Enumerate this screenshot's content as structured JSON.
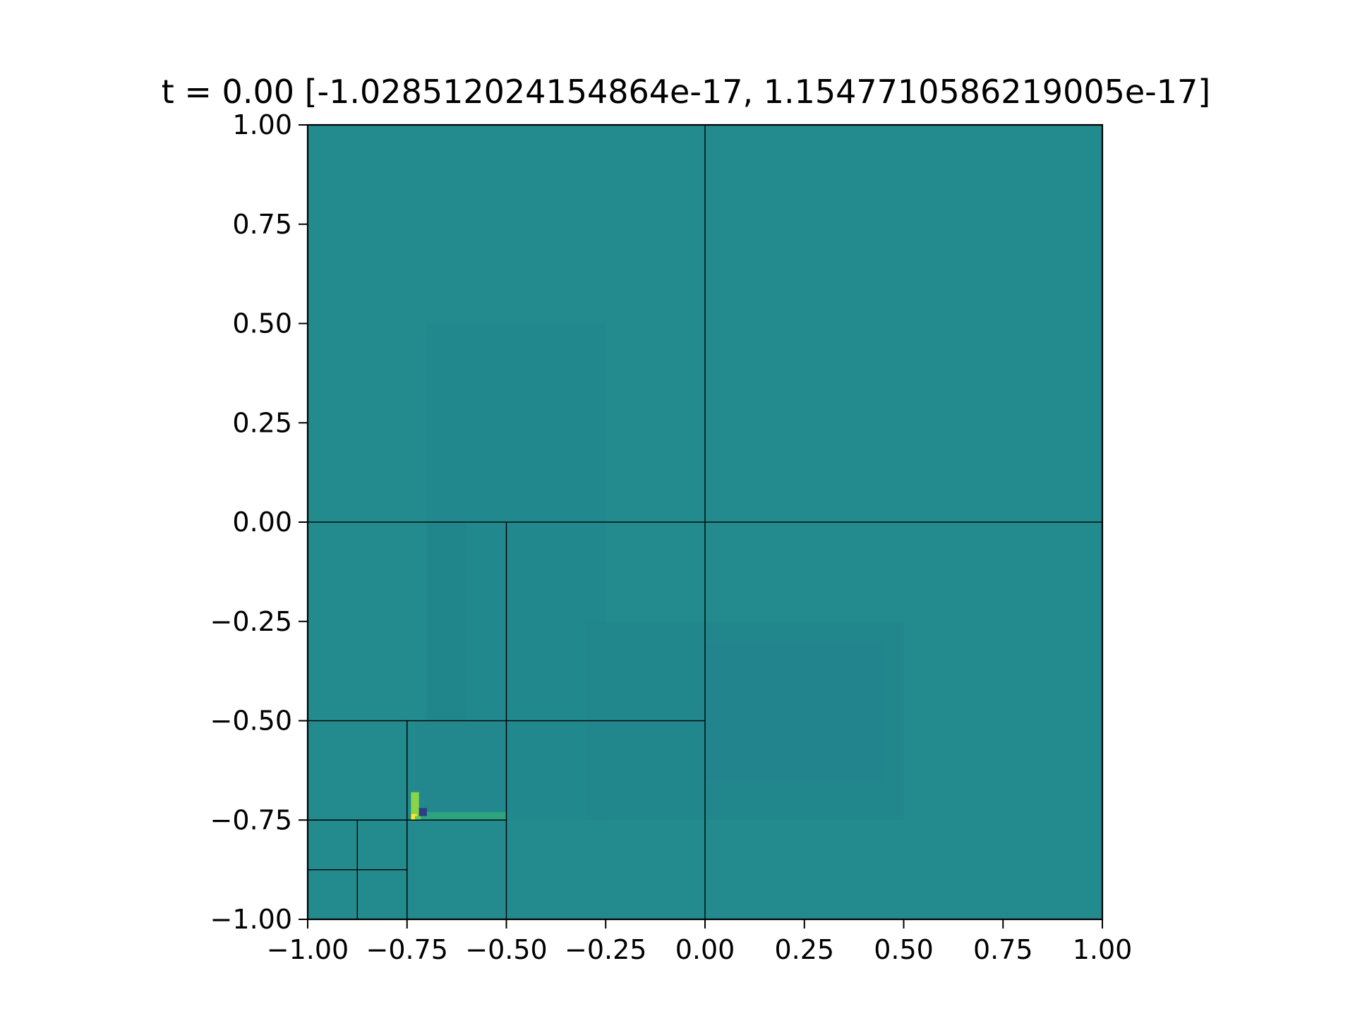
{
  "chart_data": {
    "type": "heatmap",
    "title": "t = 0.00 [-1.028512024154864e-17, 1.1547710586219005e-17]",
    "xlabel": "",
    "ylabel": "",
    "xlim": [
      -1.0,
      1.0
    ],
    "ylim": [
      -1.0,
      1.0
    ],
    "grid": false,
    "legend": "none",
    "colormap": "viridis",
    "background_color": "#238a8d",
    "value_range": [
      -1.028512024154864e-17,
      1.1547710586219005e-17
    ],
    "xticks": [
      -1.0,
      -0.75,
      -0.5,
      -0.25,
      0.0,
      0.25,
      0.5,
      0.75,
      1.0
    ],
    "xtick_labels": [
      "−1.00",
      "−0.75",
      "−0.50",
      "−0.25",
      "0.00",
      "0.25",
      "0.50",
      "0.75",
      "1.00"
    ],
    "yticks": [
      1.0,
      0.75,
      0.5,
      0.25,
      0.0,
      -0.25,
      -0.5,
      -0.75,
      -1.0
    ],
    "ytick_labels": [
      "1.00",
      "0.75",
      "0.50",
      "0.25",
      "0.00",
      "−0.25",
      "−0.50",
      "−0.75",
      "−1.00"
    ],
    "mesh_blocks": [
      {
        "x": [
          -1.0,
          0.0
        ],
        "y": [
          0.0,
          1.0
        ]
      },
      {
        "x": [
          0.0,
          1.0
        ],
        "y": [
          0.0,
          1.0
        ]
      },
      {
        "x": [
          0.0,
          1.0
        ],
        "y": [
          -1.0,
          0.0
        ]
      },
      {
        "x": [
          -1.0,
          -0.5
        ],
        "y": [
          -0.5,
          0.0
        ]
      },
      {
        "x": [
          -0.5,
          0.0
        ],
        "y": [
          -0.5,
          0.0
        ]
      },
      {
        "x": [
          -0.5,
          0.0
        ],
        "y": [
          -1.0,
          -0.5
        ]
      },
      {
        "x": [
          -0.75,
          -0.5
        ],
        "y": [
          -0.75,
          -0.5
        ]
      },
      {
        "x": [
          -0.75,
          -0.5
        ],
        "y": [
          -1.0,
          -0.75
        ]
      },
      {
        "x": [
          -1.0,
          -0.75
        ],
        "y": [
          -0.75,
          -0.5
        ]
      },
      {
        "x": [
          -1.0,
          -0.875
        ],
        "y": [
          -0.875,
          -0.75
        ]
      },
      {
        "x": [
          -0.875,
          -0.75
        ],
        "y": [
          -0.875,
          -0.75
        ]
      },
      {
        "x": [
          -1.0,
          -0.875
        ],
        "y": [
          -1.0,
          -0.875
        ]
      },
      {
        "x": [
          -0.875,
          -0.75
        ],
        "y": [
          -1.0,
          -0.875
        ]
      }
    ],
    "field_features": [
      {
        "x": [
          -0.7,
          -0.25
        ],
        "y": [
          -0.75,
          0.5
        ],
        "color": "#21888d"
      },
      {
        "x": [
          -0.3,
          0.5
        ],
        "y": [
          -0.75,
          -0.25
        ],
        "color": "#21878d"
      },
      {
        "x": [
          0.0,
          0.45
        ],
        "y": [
          -0.65,
          -0.3
        ],
        "color": "#22858d"
      },
      {
        "x": [
          -0.7,
          -0.6
        ],
        "y": [
          -0.65,
          0.0
        ],
        "color": "#21858c"
      },
      {
        "x": [
          -0.73,
          -0.5
        ],
        "y": [
          -0.74,
          -0.5
        ],
        "color": "#23888e"
      },
      {
        "x": [
          -0.73,
          -0.5
        ],
        "y": [
          -0.75,
          -0.73
        ],
        "color": "#2da380"
      },
      {
        "x": [
          -0.74,
          -0.72
        ],
        "y": [
          -0.75,
          -0.68
        ],
        "color": "#8ad547"
      },
      {
        "x": [
          -0.74,
          -0.725
        ],
        "y": [
          -0.75,
          -0.735
        ],
        "color": "#fde725"
      },
      {
        "x": [
          -0.73,
          -0.715
        ],
        "y": [
          -0.75,
          -0.74
        ],
        "color": "#5ec962"
      },
      {
        "x": [
          -0.72,
          -0.7
        ],
        "y": [
          -0.74,
          -0.72
        ],
        "color": "#2c3f83"
      }
    ]
  }
}
